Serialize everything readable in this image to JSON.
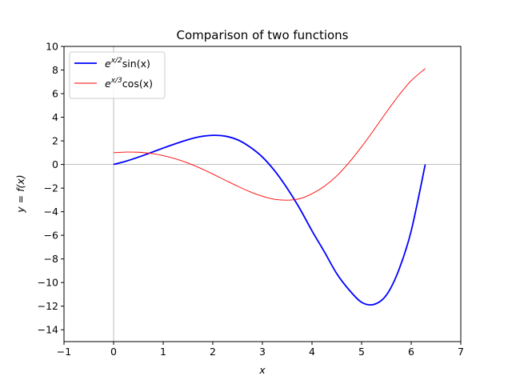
{
  "chart_data": {
    "type": "line",
    "title": "Comparison of two functions",
    "xlabel": "x",
    "ylabel": "y = f(x)",
    "xlim": [
      -1,
      7
    ],
    "ylim": [
      -15,
      10
    ],
    "xticks": [
      -1,
      0,
      1,
      2,
      3,
      4,
      5,
      6,
      7
    ],
    "yticks": [
      -14,
      -12,
      -10,
      -8,
      -6,
      -4,
      -2,
      0,
      2,
      4,
      6,
      8,
      10
    ],
    "grid": false,
    "reference_lines": {
      "x": 0,
      "y": 0,
      "color": "#aaaaaa"
    },
    "legend": {
      "placement": "top-left"
    },
    "series": [
      {
        "name": "e^{x/2} sin(x)",
        "legend_main": "e",
        "legend_sup": "x/2",
        "legend_rest": "sin(x)",
        "color": "#0000ff",
        "line_width": "thick",
        "x": [
          0,
          0.25,
          0.5,
          0.75,
          1.0,
          1.25,
          1.5,
          1.75,
          2.0,
          2.25,
          2.5,
          2.75,
          3.0,
          3.25,
          3.5,
          3.75,
          4.0,
          4.25,
          4.5,
          4.75,
          5.0,
          5.25,
          5.5,
          5.75,
          6.0,
          6.283
        ],
        "values": [
          0.0,
          0.28,
          0.62,
          1.0,
          1.39,
          1.76,
          2.1,
          2.36,
          2.47,
          2.4,
          2.09,
          1.48,
          0.63,
          -0.55,
          -2.02,
          -3.71,
          -5.62,
          -7.4,
          -9.25,
          -10.63,
          -11.67,
          -11.85,
          -11.06,
          -8.94,
          -5.62,
          0.0
        ]
      },
      {
        "name": "e^{x/3} cos(x)",
        "legend_main": "e",
        "legend_sup": "x/3",
        "legend_rest": "cos(x)",
        "color": "#ff0000",
        "line_width": "thin",
        "x": [
          0,
          0.25,
          0.5,
          0.75,
          1.0,
          1.25,
          1.5,
          1.75,
          2.0,
          2.25,
          2.5,
          2.75,
          3.0,
          3.25,
          3.5,
          3.75,
          4.0,
          4.25,
          4.5,
          4.75,
          5.0,
          5.25,
          5.5,
          5.75,
          6.0,
          6.283
        ],
        "values": [
          1.0,
          1.05,
          1.04,
          0.94,
          0.75,
          0.48,
          0.12,
          -0.32,
          -0.81,
          -1.33,
          -1.84,
          -2.31,
          -2.69,
          -2.95,
          -3.02,
          -2.9,
          -2.48,
          -1.84,
          -0.96,
          0.18,
          1.5,
          2.94,
          4.43,
          5.85,
          7.1,
          8.12
        ]
      }
    ]
  }
}
